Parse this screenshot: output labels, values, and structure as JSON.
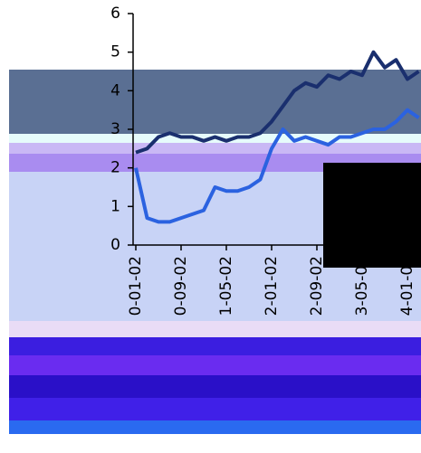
{
  "chart_data": {
    "type": "line",
    "x": [
      0,
      2,
      4,
      6,
      8,
      10,
      12,
      14,
      16,
      18,
      20,
      22,
      24,
      26,
      28,
      30,
      32,
      34,
      36,
      38,
      40,
      42,
      44,
      46,
      48,
      50
    ],
    "series": [
      {
        "color": "#1a2f6e",
        "values": [
          2.4,
          2.5,
          2.8,
          2.9,
          2.8,
          2.8,
          2.7,
          2.8,
          2.7,
          2.8,
          2.8,
          2.9,
          3.2,
          3.6,
          4.0,
          4.2,
          4.1,
          4.4,
          4.3,
          4.5,
          4.4,
          5.0,
          4.6,
          4.8,
          4.3,
          4.5
        ]
      },
      {
        "color": "#2b62e0",
        "values": [
          2.0,
          0.7,
          0.6,
          0.6,
          0.7,
          0.8,
          0.9,
          1.5,
          1.4,
          1.4,
          1.5,
          1.7,
          2.5,
          3.0,
          2.7,
          2.8,
          2.7,
          2.6,
          2.8,
          2.8,
          2.9,
          3.0,
          3.0,
          3.2,
          3.5,
          3.3
        ]
      }
    ],
    "xlim": [
      0,
      50
    ],
    "xticks": [
      {
        "value": 0,
        "label": "0-01-02"
      },
      {
        "value": 8,
        "label": "0-09-02"
      },
      {
        "value": 16,
        "label": "1-05-02"
      },
      {
        "value": 24,
        "label": "2-01-02"
      },
      {
        "value": 32,
        "label": "2-09-02"
      },
      {
        "value": 40,
        "label": "3-05-02"
      },
      {
        "value": 48,
        "label": "4-01-02"
      }
    ],
    "ylim": [
      0,
      6
    ],
    "yticks": [
      0,
      1,
      2,
      3,
      4,
      5,
      6
    ]
  }
}
